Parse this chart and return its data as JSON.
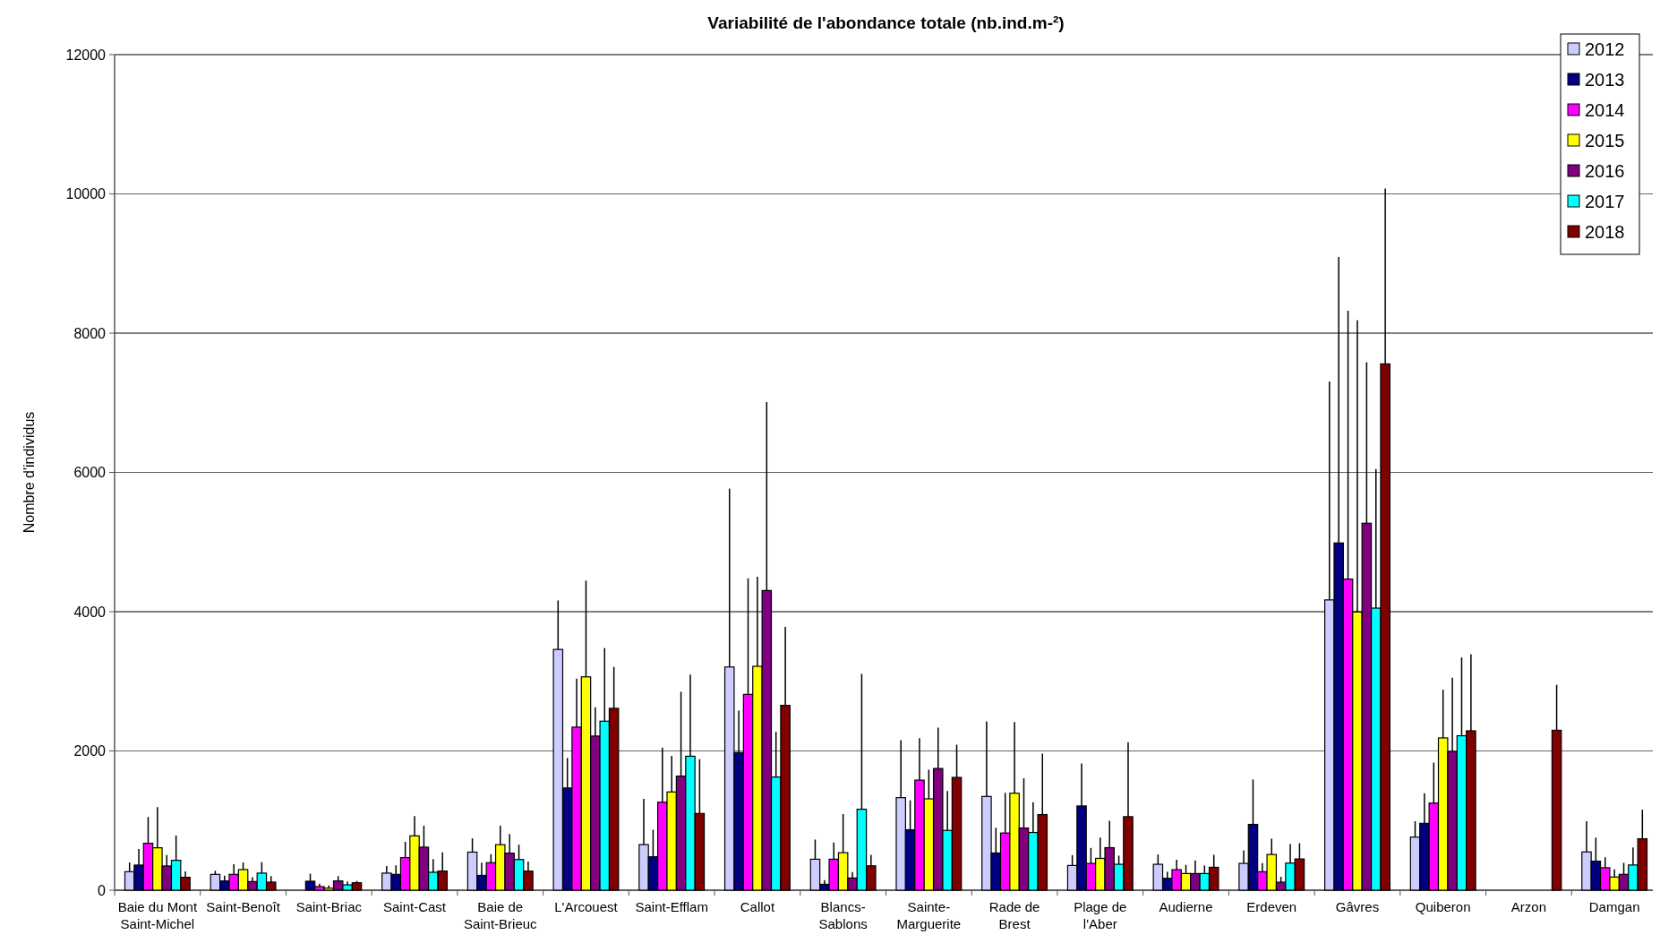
{
  "chart_data": {
    "type": "bar",
    "title": "Variabilité de l'abondance totale (nb.ind.m-²)",
    "ylabel": "Nombre d'individus",
    "categories": [
      "Baie du Mont Saint-Michel",
      "Saint-Benoît",
      "Saint-Briac",
      "Saint-Cast",
      "Baie de Saint-Brieuc",
      "L'Arcouest",
      "Saint-Efflam",
      "Callot",
      "Blancs-Sablons",
      "Sainte-Marguerite",
      "Rade de Brest",
      "Plage de l'Aber",
      "Audierne",
      "Erdeven",
      "Gâvres",
      "Quiberon",
      "Arzon",
      "Damgan"
    ],
    "ylim": [
      0,
      12000
    ],
    "yticks": [
      0,
      2000,
      4000,
      6000,
      8000,
      10000,
      12000
    ],
    "grid": "y",
    "legend": "top right",
    "series": [
      {
        "name": "2012",
        "color": "#ccccff",
        "values": [
          266,
          227,
          0,
          245,
          547,
          3458,
          655,
          3206,
          445,
          1329,
          1346,
          355,
          372,
          385,
          4169,
          763,
          null,
          550
        ],
        "errors": [
          [
            266,
            399
          ],
          [
            227,
            279
          ],
          null,
          [
            245,
            348
          ],
          [
            547,
            745
          ],
          [
            3458,
            4161
          ],
          [
            655,
            1311
          ],
          [
            3206,
            5767
          ],
          [
            445,
            727
          ],
          [
            1329,
            2154
          ],
          [
            1346,
            2423
          ],
          [
            355,
            504
          ],
          [
            372,
            513
          ],
          [
            385,
            573
          ],
          [
            4169,
            7307
          ],
          [
            763,
            991
          ],
          null,
          [
            550,
            991
          ]
        ]
      },
      {
        "name": "2013",
        "color": "#000080",
        "values": [
          361,
          133,
          129,
          227,
          213,
          1468,
          480,
          1976,
          85,
          868,
          534,
          1210,
          171,
          945,
          4987,
          960,
          null,
          417
        ],
        "errors": [
          [
            361,
            592
          ],
          [
            133,
            210
          ],
          [
            129,
            236
          ],
          [
            227,
            356
          ],
          [
            213,
            395
          ],
          [
            1468,
            1900
          ],
          [
            480,
            869
          ],
          [
            1976,
            2579
          ],
          [
            85,
            145
          ],
          [
            868,
            1291
          ],
          [
            534,
            898
          ],
          [
            1210,
            1821
          ],
          [
            171,
            265
          ],
          [
            945,
            1590
          ],
          [
            4987,
            9093
          ],
          [
            960,
            1392
          ],
          null,
          [
            417,
            755
          ]
        ]
      },
      {
        "name": "2014",
        "color": "#ff00ff",
        "values": [
          674,
          227,
          52,
          468,
          395,
          2342,
          1264,
          2812,
          445,
          1581,
          821,
          385,
          295,
          265,
          4468,
          1251,
          null,
          323
        ],
        "errors": [
          [
            674,
            1052
          ],
          [
            227,
            373
          ],
          [
            52,
            94
          ],
          [
            468,
            695
          ],
          [
            395,
            517
          ],
          [
            2342,
            3040
          ],
          [
            1264,
            2047
          ],
          [
            2812,
            4479
          ],
          [
            445,
            684
          ],
          [
            1581,
            2184
          ],
          [
            821,
            1398
          ],
          [
            385,
            607
          ],
          [
            295,
            436
          ],
          [
            265,
            389
          ],
          [
            4468,
            8322
          ],
          [
            1251,
            1833
          ],
          null,
          [
            323,
            472
          ]
        ]
      },
      {
        "name": "2015",
        "color": "#ffff00",
        "values": [
          609,
          296,
          30,
          781,
          654,
          3064,
          1411,
          3216,
          539,
          1312,
          1393,
          457,
          239,
          513,
          3996,
          2187,
          null,
          189
        ],
        "errors": [
          [
            609,
            1193
          ],
          [
            296,
            399
          ],
          [
            30,
            69
          ],
          [
            781,
            1064
          ],
          [
            654,
            927
          ],
          [
            3064,
            4446
          ],
          [
            1411,
            1929
          ],
          [
            3216,
            4503
          ],
          [
            539,
            1094
          ],
          [
            1312,
            1731
          ],
          [
            1393,
            2415
          ],
          [
            457,
            756
          ],
          [
            239,
            363
          ],
          [
            513,
            739
          ],
          [
            3996,
            8188
          ],
          [
            2187,
            2879
          ],
          null,
          [
            189,
            299
          ]
        ]
      },
      {
        "name": "2016",
        "color": "#800080",
        "values": [
          348,
          124,
          133,
          618,
          532,
          2214,
          1639,
          4304,
          175,
          1748,
          893,
          611,
          239,
          115,
          5270,
          1990,
          null,
          228
        ],
        "errors": [
          [
            348,
            506
          ],
          [
            124,
            185
          ],
          [
            133,
            202
          ],
          [
            618,
            927
          ],
          [
            532,
            806
          ],
          [
            2214,
            2627
          ],
          [
            1639,
            2850
          ],
          [
            4304,
            7011
          ],
          [
            175,
            261
          ],
          [
            1748,
            2334
          ],
          [
            893,
            1607
          ],
          [
            611,
            996
          ],
          [
            239,
            427
          ],
          [
            115,
            192
          ],
          [
            5270,
            7583
          ],
          [
            1990,
            3052
          ],
          null,
          [
            228,
            393
          ]
        ]
      },
      {
        "name": "2017",
        "color": "#00ffff",
        "values": [
          429,
          245,
          77,
          258,
          441,
          2427,
          1924,
          1625,
          1163,
          859,
          829,
          372,
          239,
          389,
          4051,
          2218,
          null,
          362
        ],
        "errors": [
          [
            429,
            785
          ],
          [
            245,
            403
          ],
          [
            77,
            124
          ],
          [
            258,
            446
          ],
          [
            441,
            654
          ],
          [
            2427,
            3477
          ],
          [
            1924,
            3097
          ],
          [
            1625,
            2275
          ],
          [
            1163,
            3107
          ],
          [
            859,
            1423
          ],
          [
            829,
            1265
          ],
          [
            372,
            496
          ],
          [
            239,
            355
          ],
          [
            389,
            662
          ],
          [
            4051,
            6049
          ],
          [
            2218,
            3343
          ],
          null,
          [
            362,
            614
          ]
        ]
      },
      {
        "name": "2018",
        "color": "#800000",
        "values": [
          185,
          116,
          107,
          275,
          274,
          2612,
          1102,
          2655,
          350,
          1620,
          1086,
          1056,
          329,
          449,
          7559,
          2289,
          2297,
          739
        ],
        "errors": [
          [
            185,
            270
          ],
          [
            116,
            202
          ],
          [
            107,
            133
          ],
          [
            275,
            545
          ],
          [
            274,
            410
          ],
          [
            2612,
            3206
          ],
          [
            1102,
            1881
          ],
          [
            2655,
            3781
          ],
          [
            350,
            509
          ],
          [
            1620,
            2090
          ],
          [
            1086,
            1962
          ],
          [
            1056,
            2124
          ],
          [
            329,
            509
          ],
          [
            449,
            675
          ],
          [
            7559,
            10076
          ],
          [
            2289,
            3390
          ],
          [
            2297,
            2950
          ],
          [
            739,
            1156
          ]
        ]
      }
    ]
  }
}
